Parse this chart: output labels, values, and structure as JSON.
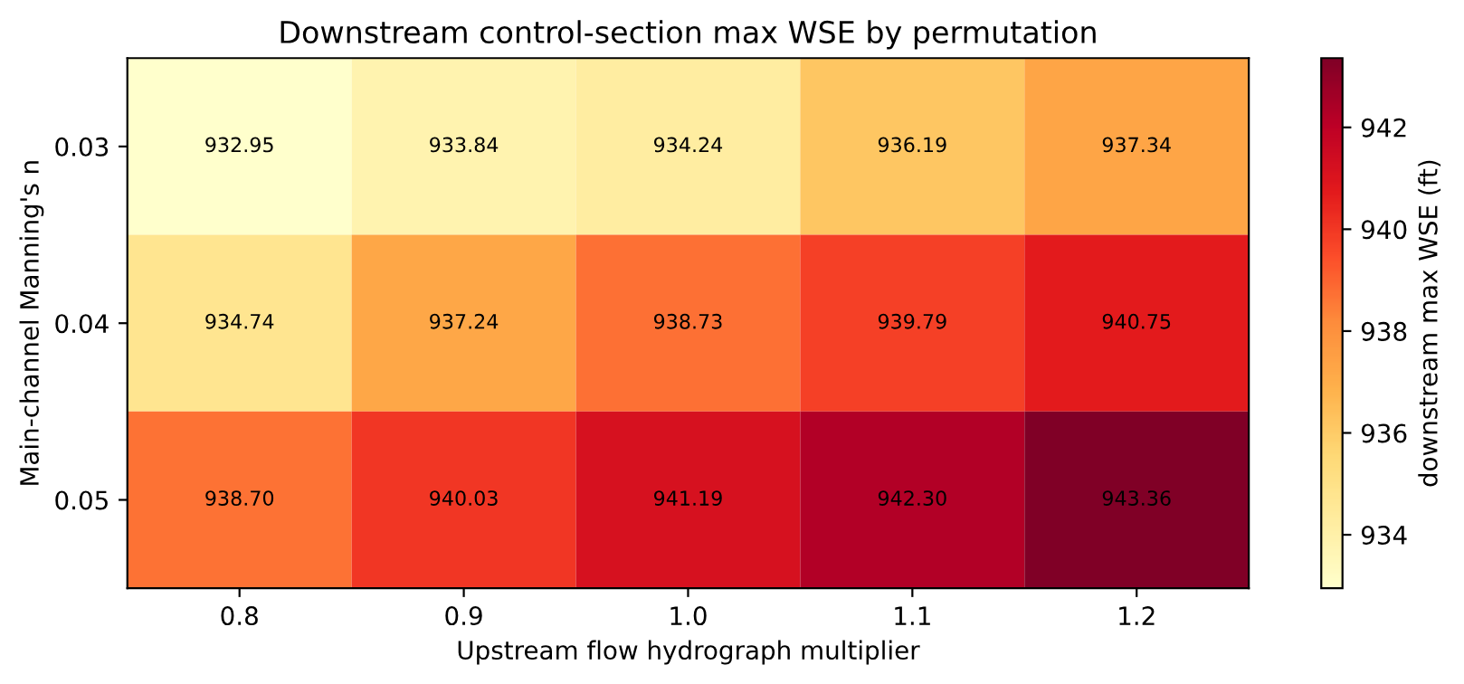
{
  "chart_data": {
    "type": "heatmap",
    "title": "Downstream control-section max WSE by permutation",
    "xlabel": "Upstream flow hydrograph multiplier",
    "ylabel": "Main-channel Manning's n",
    "clabel": "downstream max WSE (ft)",
    "categories": [
      "0.8",
      "0.9",
      "1.0",
      "1.1",
      "1.2"
    ],
    "y_categories": [
      "0.03",
      "0.04",
      "0.05"
    ],
    "cells": [
      [
        932.95,
        933.84,
        934.24,
        936.19,
        937.34
      ],
      [
        934.74,
        937.24,
        938.73,
        939.79,
        940.75
      ],
      [
        938.7,
        940.03,
        941.19,
        942.3,
        943.36
      ]
    ],
    "cell_labels": [
      [
        "932.95",
        "933.84",
        "934.24",
        "936.19",
        "937.34"
      ],
      [
        "934.74",
        "937.24",
        "938.73",
        "939.79",
        "940.75"
      ],
      [
        "938.70",
        "940.03",
        "941.19",
        "942.30",
        "943.36"
      ]
    ],
    "clim": [
      932.95,
      943.36
    ],
    "cticks": [
      934,
      936,
      938,
      940,
      942
    ]
  }
}
